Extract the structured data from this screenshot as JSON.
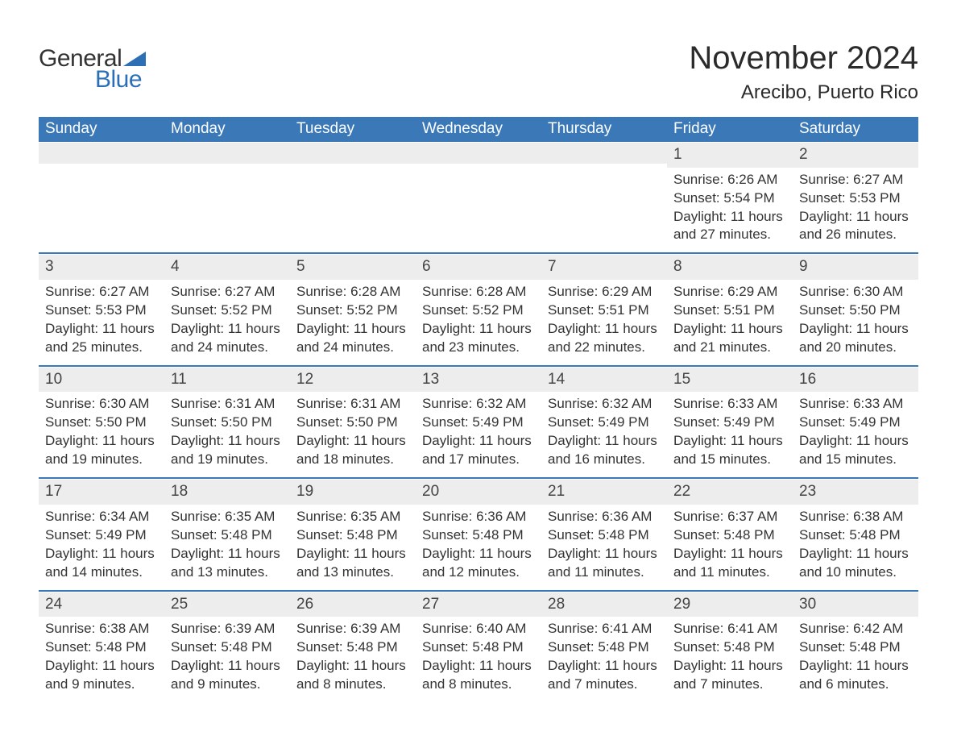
{
  "brand": {
    "part1": "General",
    "part2": "Blue",
    "text_color": "#333333",
    "accent_color": "#2d6fb5"
  },
  "title": "November 2024",
  "location": "Arecibo, Puerto Rico",
  "colors": {
    "header_bg": "#3a78b8",
    "header_text": "#ffffff",
    "daynum_bg": "#ededed",
    "week_border": "#3a78b8",
    "body_text": "#333333",
    "page_bg": "#ffffff"
  },
  "fonts": {
    "title_size_pt": 30,
    "location_size_pt": 18,
    "dayhead_size_pt": 14,
    "body_size_pt": 13
  },
  "day_headers": [
    "Sunday",
    "Monday",
    "Tuesday",
    "Wednesday",
    "Thursday",
    "Friday",
    "Saturday"
  ],
  "labels": {
    "sunrise": "Sunrise",
    "sunset": "Sunset",
    "daylight": "Daylight"
  },
  "weeks": [
    [
      null,
      null,
      null,
      null,
      null,
      {
        "n": 1,
        "sunrise": "6:26 AM",
        "sunset": "5:54 PM",
        "daylight": "11 hours and 27 minutes."
      },
      {
        "n": 2,
        "sunrise": "6:27 AM",
        "sunset": "5:53 PM",
        "daylight": "11 hours and 26 minutes."
      }
    ],
    [
      {
        "n": 3,
        "sunrise": "6:27 AM",
        "sunset": "5:53 PM",
        "daylight": "11 hours and 25 minutes."
      },
      {
        "n": 4,
        "sunrise": "6:27 AM",
        "sunset": "5:52 PM",
        "daylight": "11 hours and 24 minutes."
      },
      {
        "n": 5,
        "sunrise": "6:28 AM",
        "sunset": "5:52 PM",
        "daylight": "11 hours and 24 minutes."
      },
      {
        "n": 6,
        "sunrise": "6:28 AM",
        "sunset": "5:52 PM",
        "daylight": "11 hours and 23 minutes."
      },
      {
        "n": 7,
        "sunrise": "6:29 AM",
        "sunset": "5:51 PM",
        "daylight": "11 hours and 22 minutes."
      },
      {
        "n": 8,
        "sunrise": "6:29 AM",
        "sunset": "5:51 PM",
        "daylight": "11 hours and 21 minutes."
      },
      {
        "n": 9,
        "sunrise": "6:30 AM",
        "sunset": "5:50 PM",
        "daylight": "11 hours and 20 minutes."
      }
    ],
    [
      {
        "n": 10,
        "sunrise": "6:30 AM",
        "sunset": "5:50 PM",
        "daylight": "11 hours and 19 minutes."
      },
      {
        "n": 11,
        "sunrise": "6:31 AM",
        "sunset": "5:50 PM",
        "daylight": "11 hours and 19 minutes."
      },
      {
        "n": 12,
        "sunrise": "6:31 AM",
        "sunset": "5:50 PM",
        "daylight": "11 hours and 18 minutes."
      },
      {
        "n": 13,
        "sunrise": "6:32 AM",
        "sunset": "5:49 PM",
        "daylight": "11 hours and 17 minutes."
      },
      {
        "n": 14,
        "sunrise": "6:32 AM",
        "sunset": "5:49 PM",
        "daylight": "11 hours and 16 minutes."
      },
      {
        "n": 15,
        "sunrise": "6:33 AM",
        "sunset": "5:49 PM",
        "daylight": "11 hours and 15 minutes."
      },
      {
        "n": 16,
        "sunrise": "6:33 AM",
        "sunset": "5:49 PM",
        "daylight": "11 hours and 15 minutes."
      }
    ],
    [
      {
        "n": 17,
        "sunrise": "6:34 AM",
        "sunset": "5:49 PM",
        "daylight": "11 hours and 14 minutes."
      },
      {
        "n": 18,
        "sunrise": "6:35 AM",
        "sunset": "5:48 PM",
        "daylight": "11 hours and 13 minutes."
      },
      {
        "n": 19,
        "sunrise": "6:35 AM",
        "sunset": "5:48 PM",
        "daylight": "11 hours and 13 minutes."
      },
      {
        "n": 20,
        "sunrise": "6:36 AM",
        "sunset": "5:48 PM",
        "daylight": "11 hours and 12 minutes."
      },
      {
        "n": 21,
        "sunrise": "6:36 AM",
        "sunset": "5:48 PM",
        "daylight": "11 hours and 11 minutes."
      },
      {
        "n": 22,
        "sunrise": "6:37 AM",
        "sunset": "5:48 PM",
        "daylight": "11 hours and 11 minutes."
      },
      {
        "n": 23,
        "sunrise": "6:38 AM",
        "sunset": "5:48 PM",
        "daylight": "11 hours and 10 minutes."
      }
    ],
    [
      {
        "n": 24,
        "sunrise": "6:38 AM",
        "sunset": "5:48 PM",
        "daylight": "11 hours and 9 minutes."
      },
      {
        "n": 25,
        "sunrise": "6:39 AM",
        "sunset": "5:48 PM",
        "daylight": "11 hours and 9 minutes."
      },
      {
        "n": 26,
        "sunrise": "6:39 AM",
        "sunset": "5:48 PM",
        "daylight": "11 hours and 8 minutes."
      },
      {
        "n": 27,
        "sunrise": "6:40 AM",
        "sunset": "5:48 PM",
        "daylight": "11 hours and 8 minutes."
      },
      {
        "n": 28,
        "sunrise": "6:41 AM",
        "sunset": "5:48 PM",
        "daylight": "11 hours and 7 minutes."
      },
      {
        "n": 29,
        "sunrise": "6:41 AM",
        "sunset": "5:48 PM",
        "daylight": "11 hours and 7 minutes."
      },
      {
        "n": 30,
        "sunrise": "6:42 AM",
        "sunset": "5:48 PM",
        "daylight": "11 hours and 6 minutes."
      }
    ]
  ]
}
